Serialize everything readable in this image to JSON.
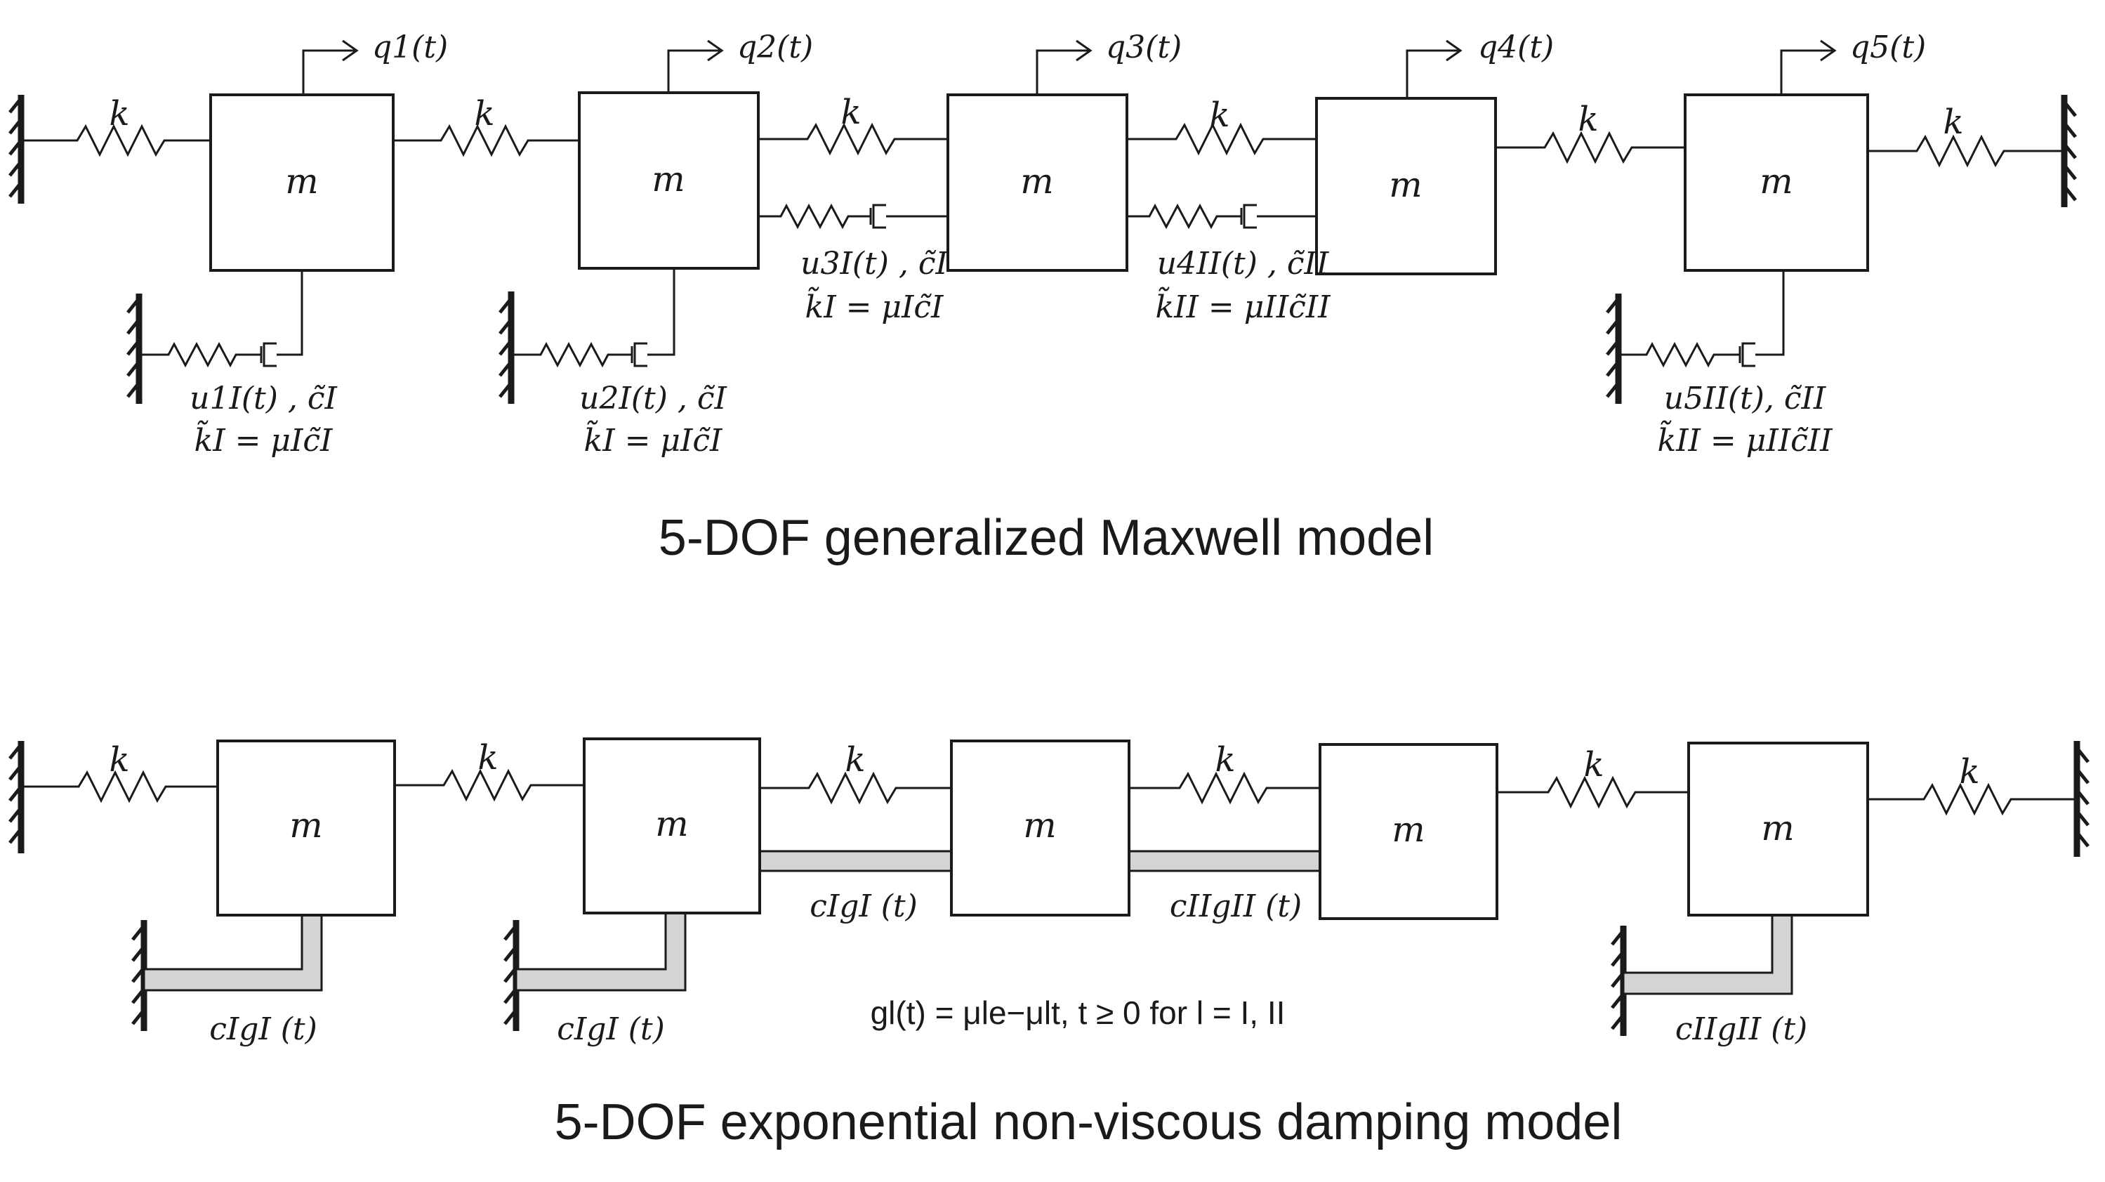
{
  "top": {
    "title": "5-DOF generalized Maxwell model",
    "spring_label": "k",
    "mass_label": "m",
    "dof_labels": [
      "q1(t)",
      "q2(t)",
      "q3(t)",
      "q4(t)",
      "q5(t)"
    ],
    "maxwell_elements": [
      {
        "internal": "u1I(t) , c̃I",
        "relation": "k̃I = μIc̃I"
      },
      {
        "internal": "u2I(t) , c̃I",
        "relation": "k̃I = μIc̃I"
      },
      {
        "internal": "u3I(t) , c̃I",
        "relation": "k̃I = μIc̃I"
      },
      {
        "internal": "u4II(t) , c̃II",
        "relation": "k̃II = μIIc̃II"
      },
      {
        "internal": "u5II(t), c̃II",
        "relation": "k̃II = μIIc̃II"
      }
    ]
  },
  "bottom": {
    "title": "5-DOF exponential non-viscous damping model",
    "spring_label": "k",
    "mass_label": "m",
    "kernel_labels": [
      "cIgI (t)",
      "cIgI (t)",
      "cIgI (t)",
      "cIIgII (t)",
      "cIIgII (t)"
    ],
    "kernel_definition": "gl(t) = μle−μlt, t ≥ 0 for l = I, II"
  },
  "colors": {
    "line": "#1a1a1a",
    "kernel_fill": "#d4d4d4",
    "background": "#ffffff"
  }
}
